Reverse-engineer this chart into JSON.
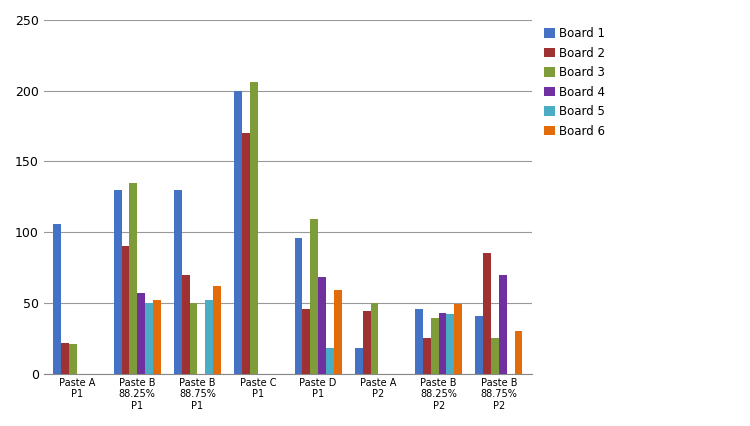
{
  "categories": [
    "Paste A\nP1",
    "Paste B\n88.25%\nP1",
    "Paste B\n88.75%\nP1",
    "Paste C\nP1",
    "Paste D\nP1",
    "Paste A\nP2",
    "Paste B\n88.25%\nP2",
    "Paste B\n88.75%\nP2"
  ],
  "series": {
    "Board 1": [
      106,
      130,
      130,
      200,
      96,
      18,
      46,
      41
    ],
    "Board 2": [
      22,
      90,
      70,
      170,
      46,
      44,
      25,
      85
    ],
    "Board 3": [
      21,
      135,
      50,
      206,
      109,
      50,
      39,
      25
    ],
    "Board 4": [
      0,
      57,
      0,
      0,
      68,
      0,
      43,
      70
    ],
    "Board 5": [
      0,
      50,
      52,
      0,
      18,
      0,
      42,
      0
    ],
    "Board 6": [
      0,
      52,
      62,
      0,
      59,
      0,
      49,
      30
    ]
  },
  "colors": {
    "Board 1": "#4472C4",
    "Board 2": "#9E3132",
    "Board 3": "#7F9C3A",
    "Board 4": "#7030A0",
    "Board 5": "#4BACC6",
    "Board 6": "#E36C0A"
  },
  "ylim": [
    0,
    250
  ],
  "yticks": [
    0,
    50,
    100,
    150,
    200,
    250
  ],
  "legend_labels": [
    "Board 1",
    "Board 2",
    "Board 3",
    "Board 4",
    "Board 5",
    "Board 6"
  ],
  "background_color": "#FFFFFF",
  "grid_color": "#999999",
  "bar_width": 0.13,
  "figsize": [
    7.5,
    4.26
  ],
  "dpi": 100
}
